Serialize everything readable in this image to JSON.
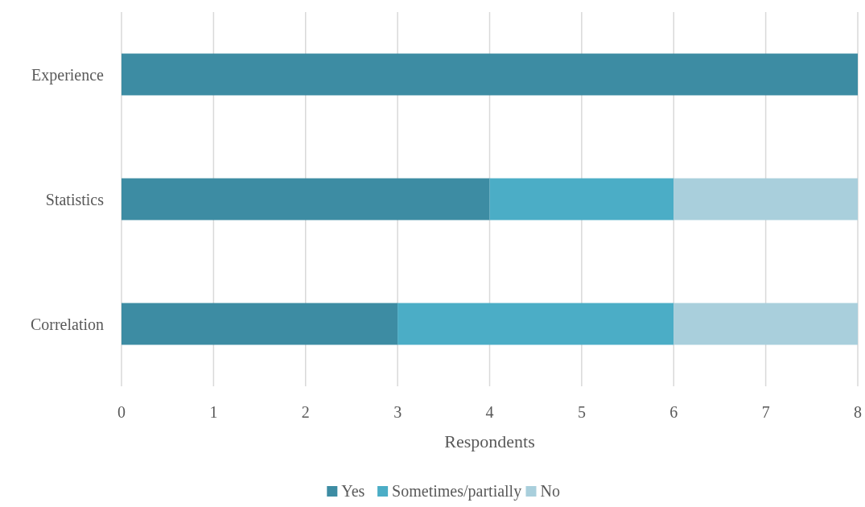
{
  "chart_data": {
    "type": "bar",
    "orientation": "horizontal",
    "stacked": true,
    "xlabel": "Respondents",
    "categories": [
      "Experience",
      "Statistics",
      "Correlation"
    ],
    "series": [
      {
        "name": "Yes",
        "color": "#3d8ca3",
        "values": [
          8,
          4,
          3
        ]
      },
      {
        "name": "Sometimes/partially",
        "color": "#4badc6",
        "values": [
          0,
          2,
          3
        ]
      },
      {
        "name": "No",
        "color": "#a9cfdc",
        "values": [
          0,
          2,
          2
        ]
      }
    ],
    "xlim": [
      0,
      8
    ],
    "xticks": [
      0,
      1,
      2,
      3,
      4,
      5,
      6,
      7,
      8
    ],
    "grid": "x",
    "legend": "bottom"
  }
}
